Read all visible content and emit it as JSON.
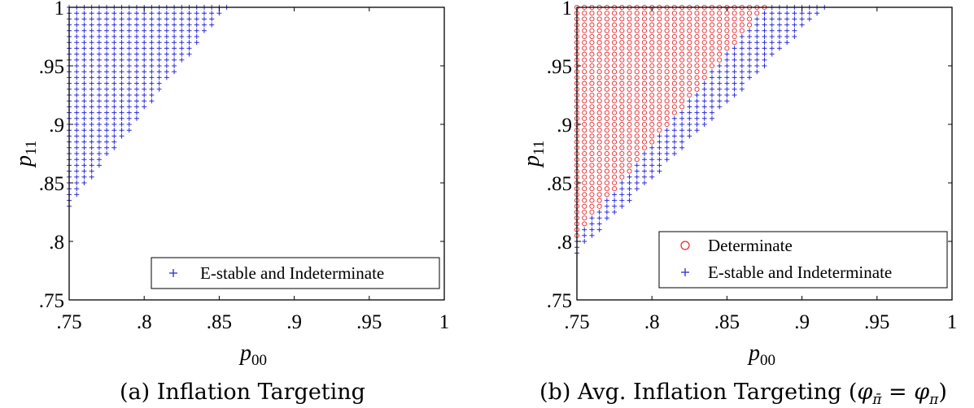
{
  "figure": {
    "marker_colors": {
      "determinate": "#e8262b",
      "estable": "#2b2bd9"
    }
  },
  "chart_data": [
    {
      "type": "scatter",
      "caption": "(a) Inflation Targeting",
      "xlabel": {
        "base": "p",
        "sub": "00"
      },
      "ylabel": {
        "base": "p",
        "sub": "11"
      },
      "xlim": [
        0.75,
        1.0
      ],
      "ylim": [
        0.75,
        1.0
      ],
      "xticks": [
        0.75,
        0.8,
        0.85,
        0.9,
        0.95,
        1.0
      ],
      "xtick_labels": [
        ".75",
        ".8",
        ".85",
        ".9",
        ".95",
        "1"
      ],
      "yticks": [
        0.75,
        0.8,
        0.85,
        0.9,
        0.95,
        1.0
      ],
      "ytick_labels": [
        ".75",
        ".8",
        ".85",
        ".9",
        ".95",
        "1"
      ],
      "grid": false,
      "grid_step": 0.005,
      "legend_position": "bottom-right",
      "series": [
        {
          "name": "E-stable and Indeterminate",
          "marker": "plus",
          "color": "#2b2bd9",
          "region": {
            "x_min": 0.75,
            "lower_boundary_p11": [
              [
                0.75,
                0.83
              ],
              [
                0.855,
                1.0
              ]
            ]
          }
        }
      ]
    },
    {
      "type": "scatter",
      "caption_parts": {
        "prefix": "(b) Avg. Inflation Targeting (",
        "phi": "φ",
        "phi_bar_sub": "π̄",
        "eq": " = ",
        "phi_sub": "π",
        "suffix": ")"
      },
      "xlabel": {
        "base": "p",
        "sub": "00"
      },
      "ylabel": {
        "base": "p",
        "sub": "11"
      },
      "xlim": [
        0.75,
        1.0
      ],
      "ylim": [
        0.75,
        1.0
      ],
      "xticks": [
        0.75,
        0.8,
        0.85,
        0.9,
        0.95,
        1.0
      ],
      "xtick_labels": [
        ".75",
        ".8",
        ".85",
        ".9",
        ".95",
        "1"
      ],
      "yticks": [
        0.75,
        0.8,
        0.85,
        0.9,
        0.95,
        1.0
      ],
      "ytick_labels": [
        ".75",
        ".8",
        ".85",
        ".9",
        ".95",
        "1"
      ],
      "grid": false,
      "grid_step": 0.005,
      "legend_position": "bottom-right",
      "series": [
        {
          "name": "Determinate",
          "marker": "circle",
          "color": "#e8262b",
          "region": {
            "x_min": 0.75,
            "lower_boundary_p11": [
              [
                0.75,
                0.805
              ],
              [
                0.875,
                1.0
              ]
            ]
          }
        },
        {
          "name": "E-stable and Indeterminate",
          "marker": "plus",
          "color": "#2b2bd9",
          "region": {
            "x_min": 0.75,
            "lower_boundary_p11": [
              [
                0.75,
                0.79
              ],
              [
                0.915,
                1.0
              ]
            ]
          }
        }
      ]
    }
  ]
}
